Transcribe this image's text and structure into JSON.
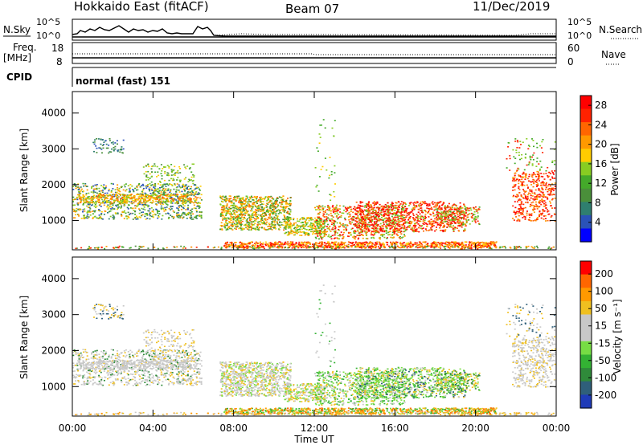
{
  "header": {
    "title": "Hokkaido East (fitACF)",
    "beam": "Beam 07",
    "date": "11/Dec/2019"
  },
  "top_panels": {
    "nsky_label": "N.Sky",
    "nsearch_label": "N.Search",
    "noise_ticks": [
      "10^5",
      "10^0"
    ],
    "freq_label": "Freq.",
    "freq_unit": "[MHz]",
    "freq_ticks": [
      "18",
      "8"
    ],
    "nave_label": "Nave",
    "nave_ticks": [
      "60",
      "0"
    ],
    "cpid_label": "CPID",
    "cpid_value": "normal (fast) 151"
  },
  "colors": {
    "power_scale": [
      "#0000ff",
      "#2a52b8",
      "#2f7f6f",
      "#4a8f3a",
      "#44aa2a",
      "#88cc22",
      "#ffcc00",
      "#ff9900",
      "#ff6600",
      "#ff2200",
      "#ff0000"
    ],
    "velocity_scale": [
      "#1f3bb8",
      "#2f5f7a",
      "#2f8a3a",
      "#33b233",
      "#77dd44",
      "#c8c8c8",
      "#c8c8c8",
      "#f0c020",
      "#ff9900",
      "#ff6600",
      "#ff0000"
    ]
  },
  "chart_data": [
    {
      "type": "heatmap",
      "name": "power",
      "ylabel": "Slant Range [km]",
      "yticks": [
        "4000",
        "3000",
        "2000",
        "1000"
      ],
      "ytick_values": [
        4000,
        3000,
        2000,
        1000
      ],
      "ylim": [
        180,
        4600
      ],
      "xlim_hours": [
        0,
        24
      ],
      "colorbar_label": "Power [dB]",
      "colorbar_ticks": [
        "28",
        "24",
        "20",
        "16",
        "12",
        "8",
        "4"
      ],
      "colorbar_range": [
        0,
        30
      ]
    },
    {
      "type": "heatmap",
      "name": "velocity",
      "ylabel": "Slant Range [km]",
      "yticks": [
        "4000",
        "3000",
        "2000",
        "1000"
      ],
      "ytick_values": [
        4000,
        3000,
        2000,
        1000
      ],
      "ylim": [
        180,
        4600
      ],
      "xlim_hours": [
        0,
        24
      ],
      "colorbar_label": "Velocity [m s⁻¹]",
      "colorbar_ticks": [
        "200",
        "100",
        "50",
        "15",
        "-15",
        "-50",
        "-100",
        "-200"
      ]
    }
  ],
  "xaxis": {
    "ticks": [
      "00:00",
      "04:00",
      "08:00",
      "12:00",
      "16:00",
      "20:00",
      "00:00"
    ],
    "tick_hours": [
      0,
      4,
      8,
      12,
      16,
      20,
      24
    ],
    "label": "Time UT"
  }
}
